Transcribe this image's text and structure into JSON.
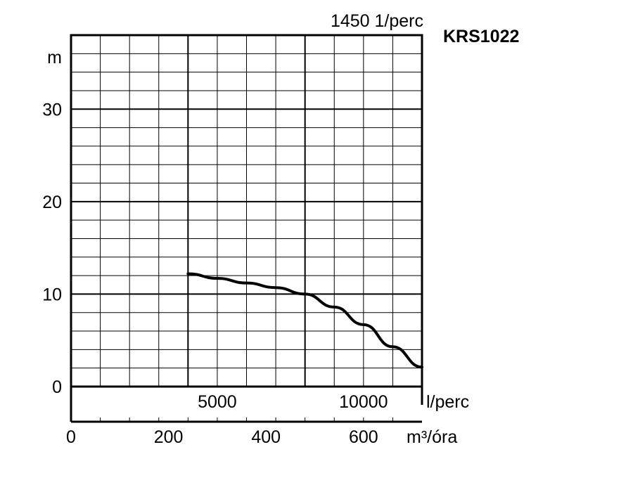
{
  "chart_data": {
    "type": "line",
    "title": "KRS1022",
    "subtitle": "1450 1/perc",
    "ylabel": "m",
    "ylim": [
      0,
      38
    ],
    "y_ticks": [
      0,
      10,
      20,
      30
    ],
    "y_minor_step": 2,
    "x_top_unit": "l/perc",
    "x_top_ticks": [
      5000,
      10000
    ],
    "x_bottom_unit": "m³/óra",
    "x_bottom_ticks": [
      0,
      200,
      400,
      600
    ],
    "xlim_m3h": [
      0,
      720
    ],
    "x_minor_step_m3h": 60,
    "grid": true,
    "series": [
      {
        "x": [
          240,
          300,
          360,
          420,
          480,
          540,
          600,
          660,
          720
        ],
        "y": [
          12.2,
          11.7,
          11.2,
          10.7,
          10.0,
          8.6,
          6.7,
          4.3,
          2.1
        ]
      }
    ]
  }
}
